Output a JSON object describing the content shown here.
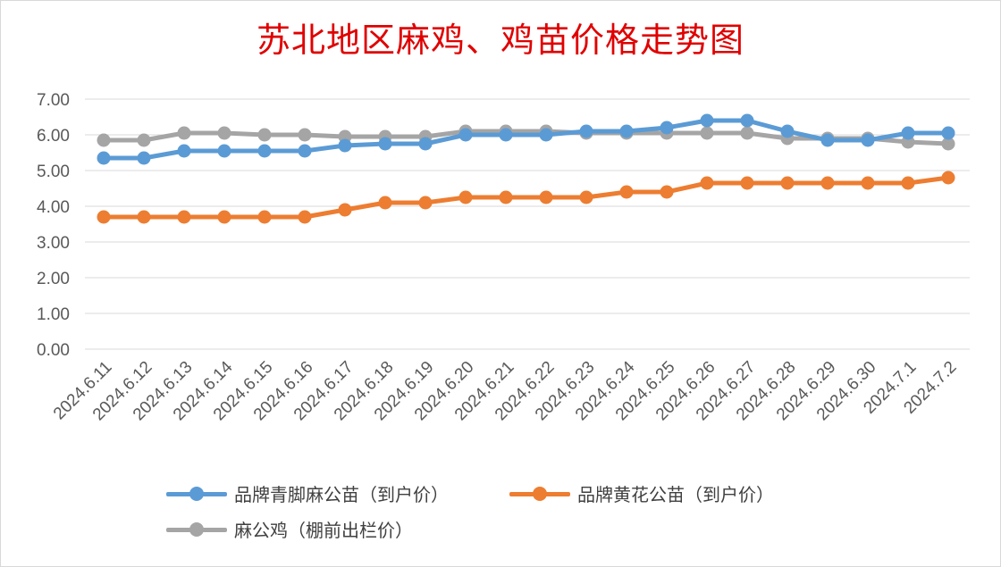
{
  "chart_data": {
    "type": "line",
    "title": "苏北地区麻鸡、鸡苗价格走势图",
    "xlabel": "",
    "ylabel": "",
    "ylim": [
      0,
      7
    ],
    "y_ticks": [
      "0.00",
      "1.00",
      "2.00",
      "3.00",
      "4.00",
      "5.00",
      "6.00",
      "7.00"
    ],
    "grid": "horizontal",
    "legend_position": "bottom",
    "categories": [
      "2024.6.11",
      "2024.6.12",
      "2024.6.13",
      "2024.6.14",
      "2024.6.15",
      "2024.6.16",
      "2024.6.17",
      "2024.6.18",
      "2024.6.19",
      "2024.6.20",
      "2024.6.21",
      "2024.6.22",
      "2024.6.23",
      "2024.6.24",
      "2024.6.25",
      "2024.6.26",
      "2024.6.27",
      "2024.6.28",
      "2024.6.29",
      "2024.6.30",
      "2024.7.1",
      "2024.7.2"
    ],
    "series": [
      {
        "name": "品牌青脚麻公苗（到户价）",
        "color": "#5b9bd5",
        "values": [
          5.35,
          5.35,
          5.55,
          5.55,
          5.55,
          5.55,
          5.7,
          5.75,
          5.75,
          6.0,
          6.0,
          6.0,
          6.1,
          6.1,
          6.2,
          6.4,
          6.4,
          6.1,
          5.85,
          5.85,
          6.05,
          6.05
        ]
      },
      {
        "name": "品牌黄花公苗（到户价）",
        "color": "#ed7d31",
        "values": [
          3.7,
          3.7,
          3.7,
          3.7,
          3.7,
          3.7,
          3.9,
          4.1,
          4.1,
          4.25,
          4.25,
          4.25,
          4.25,
          4.4,
          4.4,
          4.65,
          4.65,
          4.65,
          4.65,
          4.65,
          4.65,
          4.8
        ]
      },
      {
        "name": "麻公鸡（棚前出栏价）",
        "color": "#a5a5a5",
        "values": [
          5.85,
          5.85,
          6.05,
          6.05,
          6.0,
          6.0,
          5.95,
          5.95,
          5.95,
          6.1,
          6.1,
          6.1,
          6.05,
          6.05,
          6.05,
          6.05,
          6.05,
          5.9,
          5.9,
          5.9,
          5.8,
          5.75
        ]
      }
    ]
  }
}
